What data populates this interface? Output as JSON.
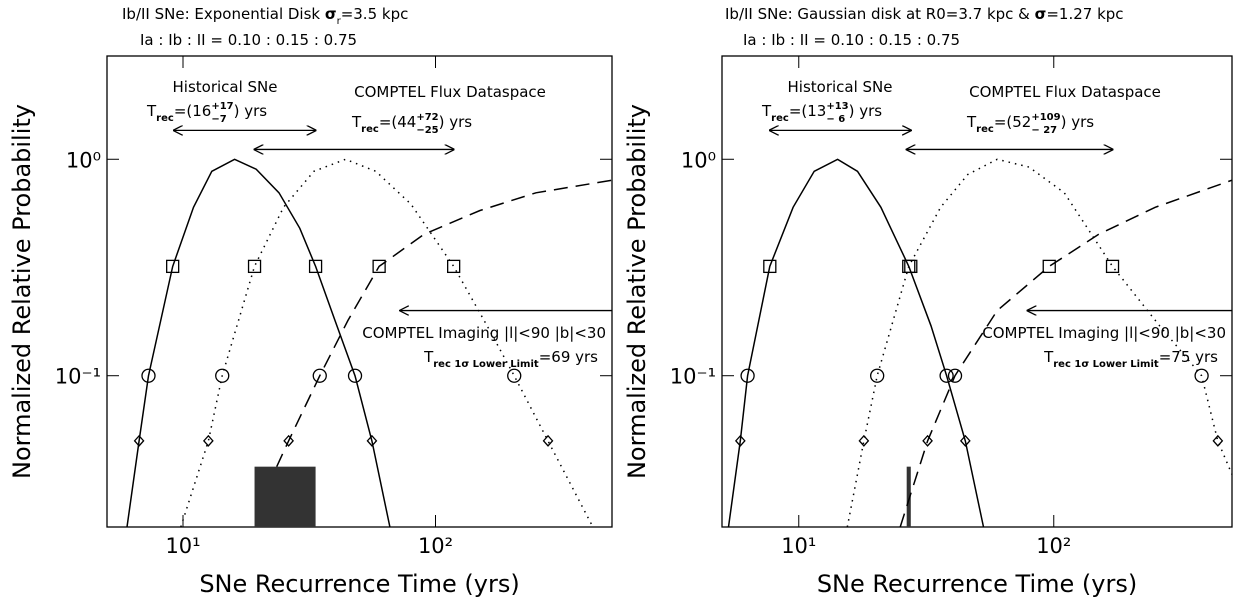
{
  "chart_data": [
    {
      "type": "line",
      "title": [
        "Ib/II SNe: Exponential Disk ",
        "σ",
        "r",
        "=3.5 kpc"
      ],
      "subtitle": "Ia : Ib : II = 0.10 : 0.15 : 0.75",
      "xlabel": "SNe Recurrence Time (yrs)",
      "ylabel": "Normalized Relative Probability",
      "xscale": "log",
      "yscale": "log",
      "xlim": [
        5,
        500
      ],
      "ylim": [
        0.02,
        3
      ],
      "xticks": [
        {
          "value": 10,
          "label": "10¹"
        },
        {
          "value": 100,
          "label": "10²"
        }
      ],
      "yticks": [
        {
          "value": 0.1,
          "label": "10⁻¹"
        },
        {
          "value": 1,
          "label": "10⁰"
        }
      ],
      "series": [
        {
          "linestyle": "solid",
          "color": "#000000",
          "x": [
            6.0,
            6.7,
            7.3,
            9.1,
            11,
            13,
            16,
            19.5,
            24,
            29,
            33.5,
            40,
            48,
            56,
            66
          ],
          "values": [
            0.02,
            0.05,
            0.1,
            0.32,
            0.6,
            0.88,
            1,
            0.9,
            0.7,
            0.48,
            0.32,
            0.18,
            0.1,
            0.05,
            0.02
          ]
        },
        {
          "linestyle": "dotted",
          "color": "#000000",
          "x": [
            9.8,
            12.6,
            14.3,
            19.2,
            25,
            33,
            44,
            58,
            80,
            118,
            160,
            205,
            279,
            420
          ],
          "values": [
            0.02,
            0.05,
            0.1,
            0.32,
            0.6,
            0.88,
            1,
            0.88,
            0.62,
            0.32,
            0.17,
            0.1,
            0.05,
            0.02
          ]
        },
        {
          "linestyle": "dashed",
          "color": "#000000",
          "x": [
            23.5,
            26.2,
            34.8,
            45,
            59.8,
            90,
            150,
            250,
            500
          ],
          "values": [
            0.038,
            0.05,
            0.1,
            0.18,
            0.32,
            0.45,
            0.58,
            0.7,
            0.8
          ]
        }
      ],
      "markers": [
        {
          "shape": "square",
          "x": [
            9.1,
            19.2,
            33.5,
            59.8,
            118
          ],
          "values": [
            0.32,
            0.32,
            0.32,
            0.32,
            0.32
          ]
        },
        {
          "shape": "circle",
          "x": [
            7.3,
            14.3,
            34.8,
            48,
            205
          ],
          "values": [
            0.1,
            0.1,
            0.1,
            0.1,
            0.1
          ]
        },
        {
          "shape": "diamond",
          "x": [
            6.7,
            12.6,
            26.2,
            56,
            279
          ],
          "values": [
            0.05,
            0.05,
            0.05,
            0.05,
            0.05
          ]
        }
      ],
      "shaded": {
        "x": [
          19.2,
          33.5
        ],
        "value": 0.038,
        "color": "#333333"
      },
      "arrows": [
        {
          "x": [
            9.2,
            33.5
          ],
          "y": 1.36,
          "heads": "both"
        },
        {
          "x": [
            19.2,
            118
          ],
          "y": 1.11,
          "heads": "both"
        },
        {
          "x": [
            500,
            72.5
          ],
          "y": 0.2,
          "heads": "end"
        }
      ],
      "annotations": {
        "historical": {
          "label": "Historical SNe",
          "trec": [
            "T",
            "rec",
            "=(16",
            "+17",
            "−7",
            ") yrs"
          ]
        },
        "flux": {
          "label": "COMPTEL Flux Dataspace",
          "trec": [
            "T",
            "rec",
            "=(44",
            "+72",
            "−25",
            ") yrs"
          ]
        },
        "imaging": {
          "label": "COMPTEL Imaging |l|<90 |b|<30",
          "trec": [
            "T",
            "rec 1σ Lower Limit",
            "=69 yrs"
          ]
        }
      }
    },
    {
      "type": "line",
      "title": [
        "Ib/II SNe: Gaussian disk at R0=3.7 kpc & ",
        "σ",
        "=1.27 kpc"
      ],
      "subtitle": "Ia : Ib : II = 0.10 : 0.15 : 0.75",
      "xlabel": "SNe Recurrence Time (yrs)",
      "ylabel": "Normalized Relative Probability",
      "xscale": "log",
      "yscale": "log",
      "xlim": [
        5,
        500
      ],
      "ylim": [
        0.02,
        3
      ],
      "xticks": [
        {
          "value": 10,
          "label": "10¹"
        },
        {
          "value": 100,
          "label": "10²"
        }
      ],
      "yticks": [
        {
          "value": 0.1,
          "label": "10⁻¹"
        },
        {
          "value": 1,
          "label": "10⁰"
        }
      ],
      "series": [
        {
          "linestyle": "solid",
          "color": "#000000",
          "x": [
            5.3,
            5.9,
            6.3,
            7.7,
            9.5,
            11.5,
            14.2,
            17,
            21,
            27,
            33,
            38,
            45,
            53
          ],
          "values": [
            0.02,
            0.05,
            0.1,
            0.32,
            0.6,
            0.88,
            1,
            0.88,
            0.6,
            0.32,
            0.17,
            0.1,
            0.05,
            0.02
          ]
        },
        {
          "linestyle": "dotted",
          "color": "#000000",
          "x": [
            15.5,
            18,
            20.3,
            27,
            36,
            46,
            60,
            80,
            110,
            170,
            260,
            380,
            440,
            500
          ],
          "values": [
            0.02,
            0.05,
            0.1,
            0.32,
            0.6,
            0.85,
            1,
            0.92,
            0.7,
            0.32,
            0.17,
            0.1,
            0.05,
            0.035
          ]
        },
        {
          "linestyle": "dashed",
          "color": "#000000",
          "x": [
            25,
            32,
            41,
            60,
            96,
            150,
            250,
            500
          ],
          "values": [
            0.02,
            0.05,
            0.1,
            0.2,
            0.32,
            0.45,
            0.6,
            0.8
          ]
        }
      ],
      "markers": [
        {
          "shape": "square",
          "x": [
            7.7,
            27,
            27.5,
            96,
            170
          ],
          "values": [
            0.32,
            0.32,
            0.32,
            0.32,
            0.32
          ]
        },
        {
          "shape": "circle",
          "x": [
            6.3,
            20.3,
            38,
            41,
            380
          ],
          "values": [
            0.1,
            0.1,
            0.1,
            0.1,
            0.1
          ]
        },
        {
          "shape": "diamond",
          "x": [
            5.9,
            18,
            32,
            45,
            440
          ],
          "values": [
            0.05,
            0.05,
            0.05,
            0.05,
            0.05
          ]
        }
      ],
      "shaded": {
        "x": [
          26.5,
          27.5
        ],
        "value": 0.038,
        "color": "#333333"
      },
      "arrows": [
        {
          "x": [
            7.7,
            27.5
          ],
          "y": 1.36,
          "heads": "both"
        },
        {
          "x": [
            26.5,
            170
          ],
          "y": 1.11,
          "heads": "both"
        },
        {
          "x": [
            500,
            79
          ],
          "y": 0.2,
          "heads": "end"
        }
      ],
      "annotations": {
        "historical": {
          "label": "Historical SNe",
          "trec": [
            "T",
            "rec",
            "=(13",
            "+13",
            "− 6",
            ") yrs"
          ]
        },
        "flux": {
          "label": "COMPTEL Flux Dataspace",
          "trec": [
            "T",
            "rec",
            "=(52",
            "+109",
            "− 27",
            ") yrs"
          ]
        },
        "imaging": {
          "label": "COMPTEL Imaging |l|<90 |b|<30",
          "trec": [
            "T",
            "rec 1σ Lower Limit",
            "=75 yrs"
          ]
        }
      }
    }
  ]
}
